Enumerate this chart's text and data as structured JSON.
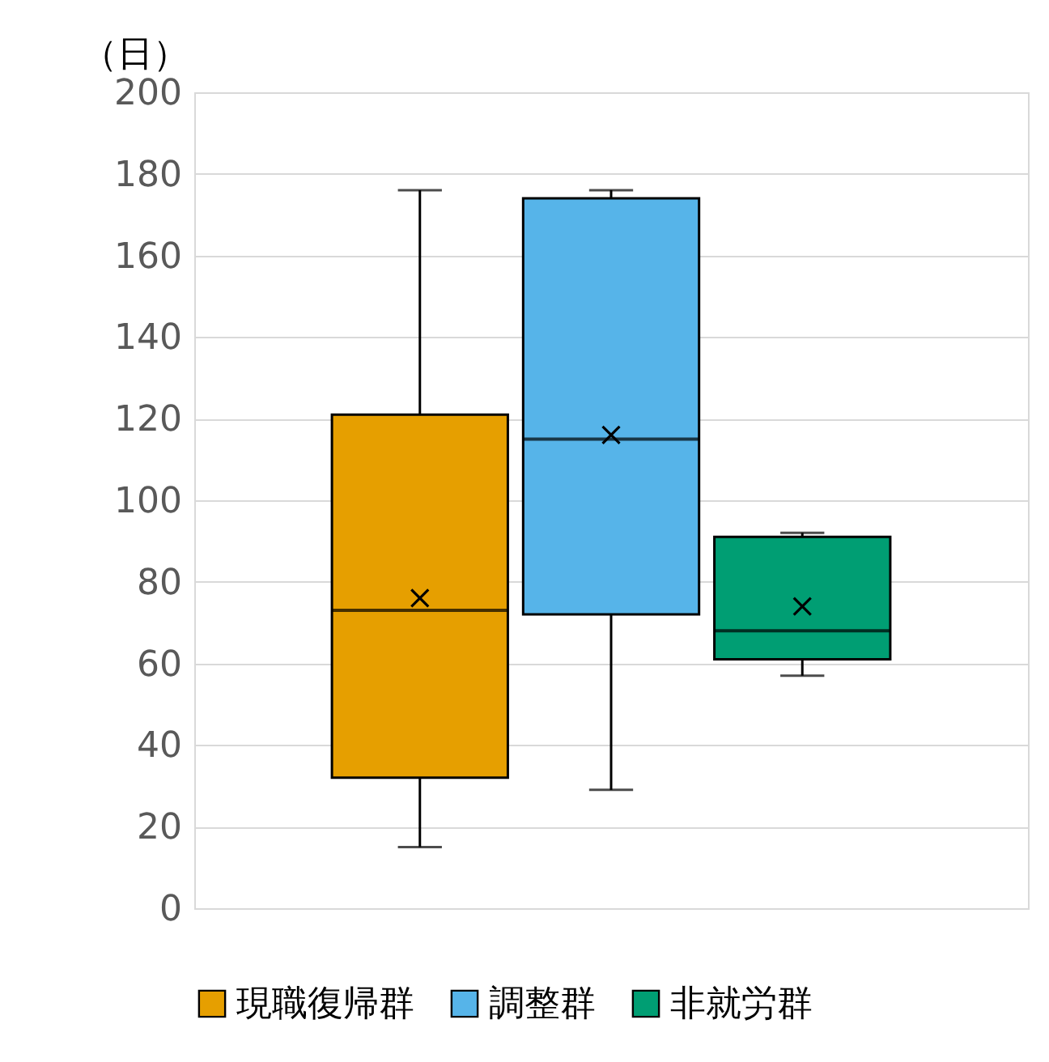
{
  "chart_data": {
    "type": "box",
    "ylabel": "（日）",
    "categories": [
      null
    ],
    "ylim": [
      0,
      200
    ],
    "yticks": [
      0,
      20,
      40,
      60,
      80,
      100,
      120,
      140,
      160,
      180,
      200
    ],
    "grid": "y",
    "legend": "bottom",
    "marker": "cross",
    "series": [
      {
        "name": "現職復帰群",
        "color": "#e69f00",
        "boxes": [
          {
            "low": 15,
            "q1": 32,
            "median": 73,
            "q3": 121,
            "high": 176,
            "mean": 76
          }
        ]
      },
      {
        "name": "調整群",
        "color": "#56b4e9",
        "boxes": [
          {
            "low": 29,
            "q1": 72,
            "median": 115,
            "q3": 174,
            "high": 176,
            "mean": 116
          }
        ]
      },
      {
        "name": "非就労群",
        "color": "#009e73",
        "boxes": [
          {
            "low": 57,
            "q1": 61,
            "median": 68,
            "q3": 91,
            "high": 92,
            "mean": 74
          }
        ]
      }
    ]
  }
}
